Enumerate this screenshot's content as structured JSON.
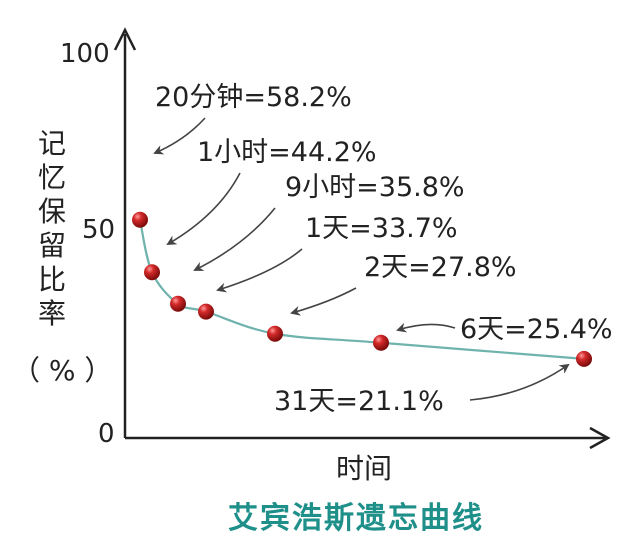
{
  "chart_data": {
    "type": "line",
    "title": "艾宾浩斯遗忘曲线",
    "xlabel": "时间",
    "ylabel": "记忆保留比率",
    "ylabel_unit": "（ %  ）",
    "y_ticks": [
      "0",
      "50",
      "100"
    ],
    "ylim": [
      0,
      100
    ],
    "series": [
      {
        "x": [
          "20分钟",
          "1小时",
          "9小时",
          "1天",
          "2天",
          "6天",
          "31天"
        ],
        "y": [
          58.2,
          44.2,
          35.8,
          33.7,
          27.8,
          25.4,
          21.1
        ]
      }
    ],
    "annotations": [
      "20分钟=58.2%",
      "1小时=44.2%",
      "9小时=35.8%",
      "1天=33.7%",
      "2天=27.8%",
      "6天=25.4%",
      "31天=21.1%"
    ],
    "colors": {
      "line": "#6fb3ad",
      "point": "#c0161f",
      "axis": "#222222",
      "arrow": "#444444",
      "title": "#1f8f8a"
    }
  }
}
